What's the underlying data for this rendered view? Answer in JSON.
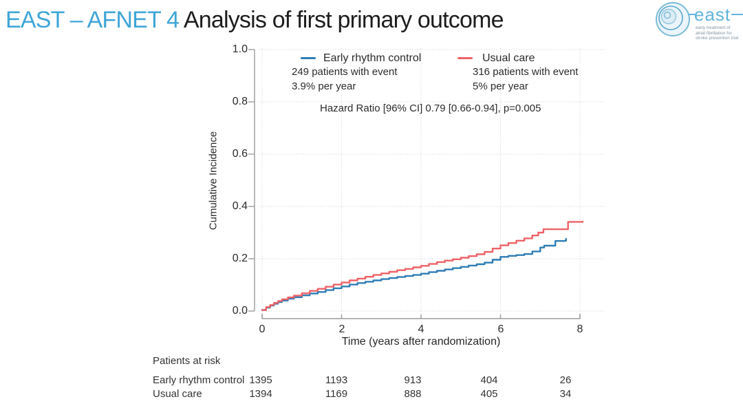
{
  "header": {
    "title_highlight": "EAST – AFNET 4",
    "title_rest": " Analysis of first primary outcome"
  },
  "logo": {
    "brand": "east",
    "tagline_lines": [
      "early treatment of",
      "atrial fibrillation for",
      "stroke prevention trial"
    ]
  },
  "chart_data": {
    "type": "line",
    "subtype": "kaplan-meier-step",
    "xlabel": "Time (years after randomization)",
    "ylabel": "Cumulative Incidence",
    "xlim": [
      0,
      8.2
    ],
    "ylim": [
      0,
      1.0
    ],
    "x_ticks": [
      0,
      2,
      4,
      6,
      8
    ],
    "y_ticks": [
      "0.0",
      "0.2",
      "0.4",
      "0.6",
      "0.8",
      "1.0"
    ],
    "grid": "dotted",
    "legend_position": "top-inside",
    "annotation_center": "Hazard Ratio [96% CI] 0.79 [0.66-0.94], p=0.005",
    "series": [
      {
        "name": "Early rhythm control",
        "color": "#2e7cb5",
        "annotation": [
          "249 patients with event",
          "3.9% per year"
        ],
        "points": [
          [
            0,
            0.004
          ],
          [
            0.1,
            0.013
          ],
          [
            0.2,
            0.021
          ],
          [
            0.3,
            0.028
          ],
          [
            0.4,
            0.034
          ],
          [
            0.5,
            0.04
          ],
          [
            0.65,
            0.047
          ],
          [
            0.8,
            0.053
          ],
          [
            1,
            0.06
          ],
          [
            1.2,
            0.067
          ],
          [
            1.4,
            0.073
          ],
          [
            1.6,
            0.08
          ],
          [
            1.8,
            0.087
          ],
          [
            2,
            0.094
          ],
          [
            2.2,
            0.101
          ],
          [
            2.4,
            0.107
          ],
          [
            2.6,
            0.112
          ],
          [
            2.8,
            0.117
          ],
          [
            3,
            0.122
          ],
          [
            3.2,
            0.126
          ],
          [
            3.4,
            0.13
          ],
          [
            3.6,
            0.134
          ],
          [
            3.8,
            0.138
          ],
          [
            4,
            0.143
          ],
          [
            4.2,
            0.149
          ],
          [
            4.4,
            0.154
          ],
          [
            4.6,
            0.159
          ],
          [
            4.8,
            0.164
          ],
          [
            5,
            0.169
          ],
          [
            5.2,
            0.174
          ],
          [
            5.4,
            0.179
          ],
          [
            5.6,
            0.185
          ],
          [
            5.8,
            0.196
          ],
          [
            6,
            0.207
          ],
          [
            6.2,
            0.211
          ],
          [
            6.4,
            0.214
          ],
          [
            6.6,
            0.218
          ],
          [
            6.8,
            0.228
          ],
          [
            7,
            0.243
          ],
          [
            7.1,
            0.25
          ],
          [
            7.38,
            0.268
          ],
          [
            7.62,
            0.269
          ],
          [
            7.65,
            0.276
          ]
        ]
      },
      {
        "name": "Usual care",
        "color": "#ee6166",
        "annotation": [
          "316 patients with event",
          "5% per year"
        ],
        "points": [
          [
            0,
            0.004
          ],
          [
            0.1,
            0.015
          ],
          [
            0.2,
            0.023
          ],
          [
            0.3,
            0.031
          ],
          [
            0.4,
            0.038
          ],
          [
            0.5,
            0.045
          ],
          [
            0.65,
            0.052
          ],
          [
            0.8,
            0.059
          ],
          [
            1,
            0.068
          ],
          [
            1.2,
            0.077
          ],
          [
            1.4,
            0.085
          ],
          [
            1.6,
            0.093
          ],
          [
            1.8,
            0.101
          ],
          [
            2,
            0.109
          ],
          [
            2.2,
            0.117
          ],
          [
            2.4,
            0.124
          ],
          [
            2.6,
            0.131
          ],
          [
            2.8,
            0.138
          ],
          [
            3,
            0.144
          ],
          [
            3.2,
            0.15
          ],
          [
            3.4,
            0.156
          ],
          [
            3.6,
            0.161
          ],
          [
            3.8,
            0.167
          ],
          [
            4,
            0.173
          ],
          [
            4.2,
            0.18
          ],
          [
            4.4,
            0.187
          ],
          [
            4.6,
            0.193
          ],
          [
            4.8,
            0.198
          ],
          [
            5,
            0.204
          ],
          [
            5.2,
            0.21
          ],
          [
            5.4,
            0.217
          ],
          [
            5.6,
            0.226
          ],
          [
            5.8,
            0.239
          ],
          [
            6,
            0.251
          ],
          [
            6.2,
            0.26
          ],
          [
            6.4,
            0.269
          ],
          [
            6.6,
            0.278
          ],
          [
            6.8,
            0.289
          ],
          [
            6.95,
            0.3
          ],
          [
            7.08,
            0.313
          ],
          [
            7.65,
            0.313
          ],
          [
            7.7,
            0.341
          ],
          [
            8.07,
            0.342
          ]
        ]
      }
    ]
  },
  "risk_table": {
    "header": "Patients at risk",
    "time_points": [
      0,
      2,
      4,
      6,
      8
    ],
    "rows": [
      {
        "label": "Early rhythm control",
        "values": [
          "1395",
          "1193",
          "913",
          "404",
          "26"
        ]
      },
      {
        "label": "Usual care",
        "values": [
          "1394",
          "1169",
          "888",
          "405",
          "34"
        ]
      }
    ]
  },
  "colors": {
    "title_accent": "#3fa5d8",
    "series_blue": "#2e7cb5",
    "series_red": "#ee6166",
    "grid": "#c9c9c9",
    "axis": "#9b9b9b"
  }
}
